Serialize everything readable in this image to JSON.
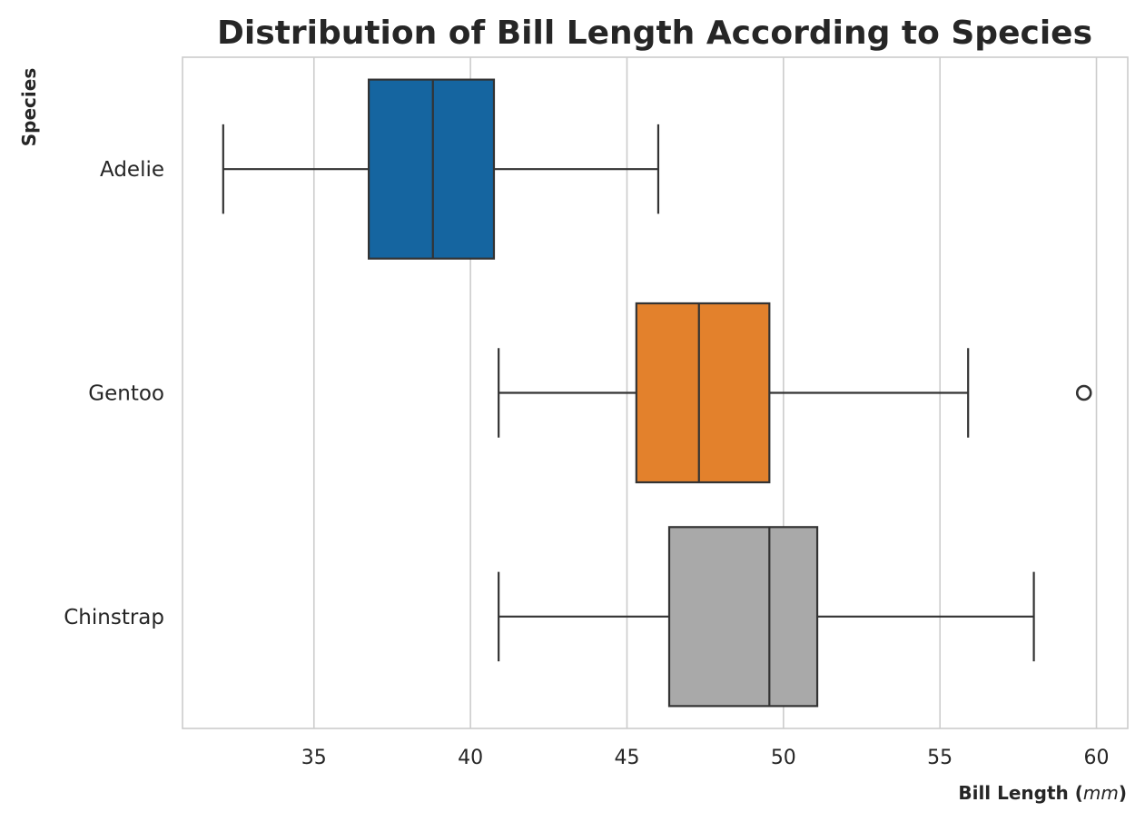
{
  "chart_data": {
    "type": "boxplot",
    "orientation": "horizontal",
    "title": "Distribution of Bill Length According to Species",
    "xlabel_main": "Bill Length (",
    "xlabel_unit": "mm",
    "xlabel_close": ")",
    "ylabel": "Species",
    "xlim": [
      30.8,
      61.0
    ],
    "xticks": [
      35,
      40,
      45,
      50,
      55,
      60
    ],
    "grid": "vertical",
    "categories": [
      "Adelie",
      "Gentoo",
      "Chinstrap"
    ],
    "boxes": [
      {
        "name": "Adelie",
        "whisker_low": 32.1,
        "q1": 36.75,
        "median": 38.8,
        "q3": 40.75,
        "whisker_high": 46.0,
        "outliers": [],
        "color": "#1565a0"
      },
      {
        "name": "Gentoo",
        "whisker_low": 40.9,
        "q1": 45.3,
        "median": 47.3,
        "q3": 49.55,
        "whisker_high": 55.9,
        "outliers": [
          59.6
        ],
        "color": "#e3812c"
      },
      {
        "name": "Chinstrap",
        "whisker_low": 40.9,
        "q1": 46.35,
        "median": 49.55,
        "q3": 51.08,
        "whisker_high": 58.0,
        "outliers": [],
        "color": "#a9a9a9"
      }
    ]
  }
}
